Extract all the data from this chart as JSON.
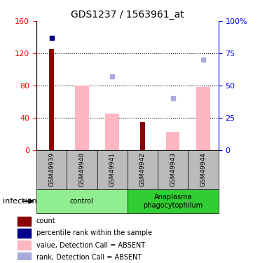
{
  "title": "GDS1237 / 1563961_at",
  "samples": [
    "GSM49939",
    "GSM49940",
    "GSM49941",
    "GSM49942",
    "GSM49943",
    "GSM49944"
  ],
  "count_values": [
    125,
    null,
    null,
    35,
    null,
    null
  ],
  "rank_values": [
    87,
    null,
    null,
    null,
    null,
    null
  ],
  "value_absent": [
    null,
    80,
    45,
    null,
    22,
    78
  ],
  "rank_absent": [
    null,
    null,
    57,
    null,
    40,
    70
  ],
  "left_ylim": [
    0,
    160
  ],
  "right_ylim": [
    0,
    100
  ],
  "left_yticks": [
    0,
    40,
    80,
    120,
    160
  ],
  "right_yticks": [
    0,
    25,
    50,
    75,
    100
  ],
  "right_yticklabels": [
    "0",
    "25",
    "50",
    "75",
    "100%"
  ],
  "color_count": "#8B0000",
  "color_rank": "#00008B",
  "color_value_absent": "#FFB6C1",
  "color_rank_absent": "#AAAADD",
  "sample_area_color": "#BBBBBB",
  "group_info": [
    {
      "start": 0,
      "end": 2,
      "label": "control",
      "color": "#90EE90"
    },
    {
      "start": 3,
      "end": 5,
      "label": "Anaplasma\nphagocytophilum",
      "color": "#32CD32"
    }
  ],
  "legend_items": [
    {
      "label": "count",
      "color": "#8B0000"
    },
    {
      "label": "percentile rank within the sample",
      "color": "#00008B"
    },
    {
      "label": "value, Detection Call = ABSENT",
      "color": "#FFB6C1"
    },
    {
      "label": "rank, Detection Call = ABSENT",
      "color": "#AAAADD"
    }
  ],
  "infection_label": "infection"
}
